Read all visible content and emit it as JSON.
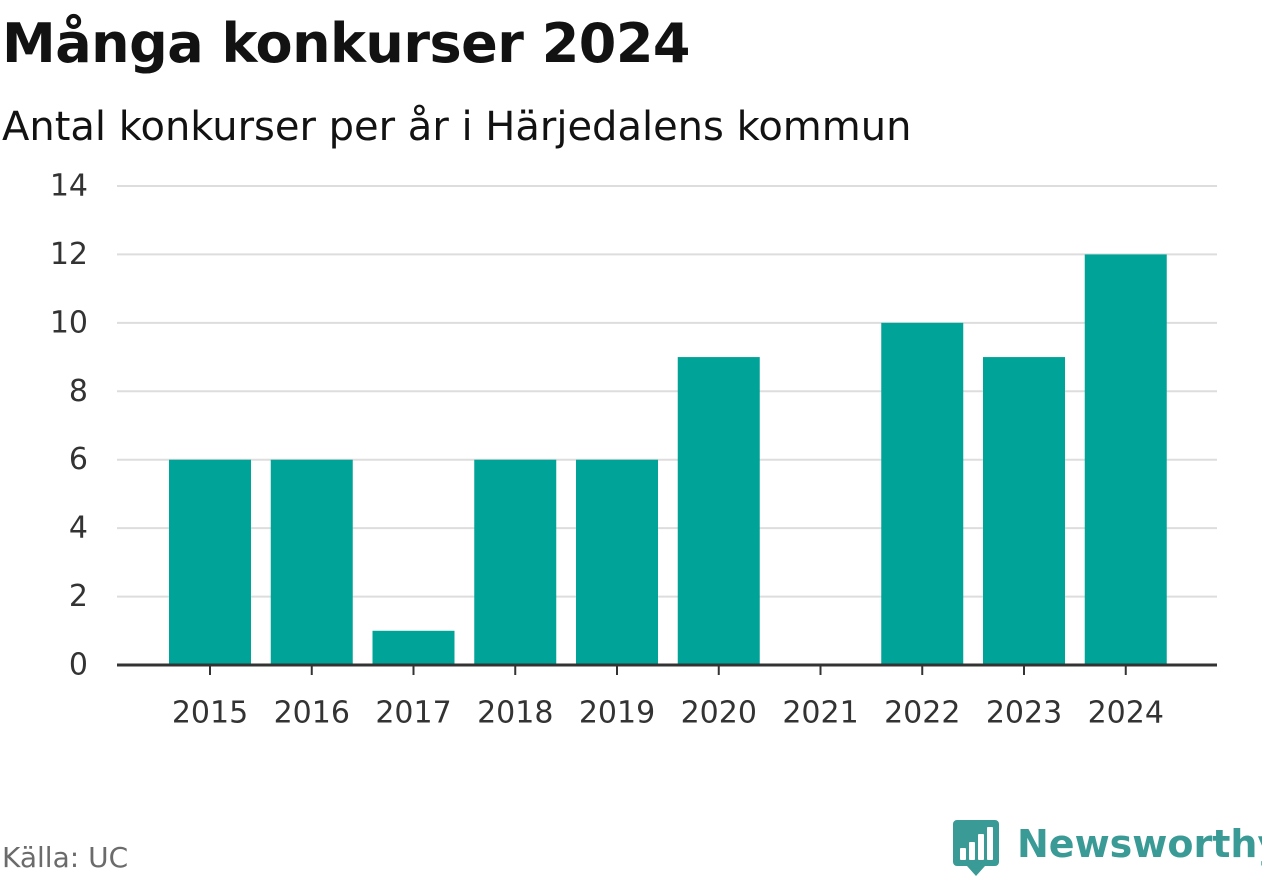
{
  "title": "Många konkurser 2024",
  "subtitle": "Antal konkurser per år i Härjedalens kommun",
  "source": "Källa: UC",
  "brand": {
    "name": "Newsworthy",
    "color": "#3a9b96",
    "icon": "newsworthy-logo-icon"
  },
  "colors": {
    "bar": "#00a398",
    "grid": "#dddddd",
    "axis": "#333333"
  },
  "chart_data": {
    "type": "bar",
    "categories": [
      "2015",
      "2016",
      "2017",
      "2018",
      "2019",
      "2020",
      "2021",
      "2022",
      "2023",
      "2024"
    ],
    "values": [
      6,
      6,
      1,
      6,
      6,
      9,
      0,
      10,
      9,
      12
    ],
    "ylim": [
      0,
      14
    ],
    "yticks": [
      0,
      2,
      4,
      6,
      8,
      10,
      12,
      14
    ],
    "grid": true,
    "legend": "none",
    "xlabel": "",
    "ylabel": ""
  }
}
